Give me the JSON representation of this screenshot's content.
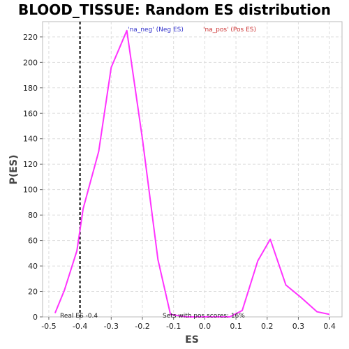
{
  "chart_data": {
    "type": "line",
    "title": "BLOOD_TISSUE: Random ES distribution",
    "xlabel": "ES",
    "ylabel": "P(ES)",
    "xlim": [
      -0.52,
      0.44
    ],
    "ylim": [
      0,
      232
    ],
    "x_ticks": [
      "-0.5",
      "-0.4",
      "-0.3",
      "-0.2",
      "-0.1",
      "0.0",
      "0.1",
      "0.2",
      "0.3",
      "0.4"
    ],
    "y_ticks": [
      "0",
      "20",
      "40",
      "60",
      "80",
      "100",
      "120",
      "140",
      "160",
      "180",
      "200",
      "220"
    ],
    "grid": true,
    "series": [
      {
        "color": "#ff33ff",
        "x": [
          -0.48,
          -0.45,
          -0.41,
          -0.39,
          -0.34,
          -0.3,
          -0.25,
          -0.2,
          -0.15,
          -0.11,
          -0.06,
          0.01,
          0.08,
          0.12,
          0.17,
          0.21,
          0.26,
          0.31,
          0.36,
          0.4
        ],
        "y": [
          3,
          21,
          52,
          85,
          130,
          196,
          225,
          140,
          45,
          2,
          0,
          0,
          0,
          5,
          44,
          61,
          25,
          15,
          4,
          2
        ]
      }
    ],
    "legend": [
      {
        "label": "'na_neg' (Neg ES)",
        "color": "#3333cc"
      },
      {
        "label": "'na_pos' (Pos ES)",
        "color": "#cc3333"
      }
    ],
    "legend_position": "top",
    "real_es_line": {
      "x": -0.4
    },
    "annotations": {
      "real_es": "Real ES -0.4",
      "pos_scores": "Sets with pos scores: 16%"
    }
  }
}
